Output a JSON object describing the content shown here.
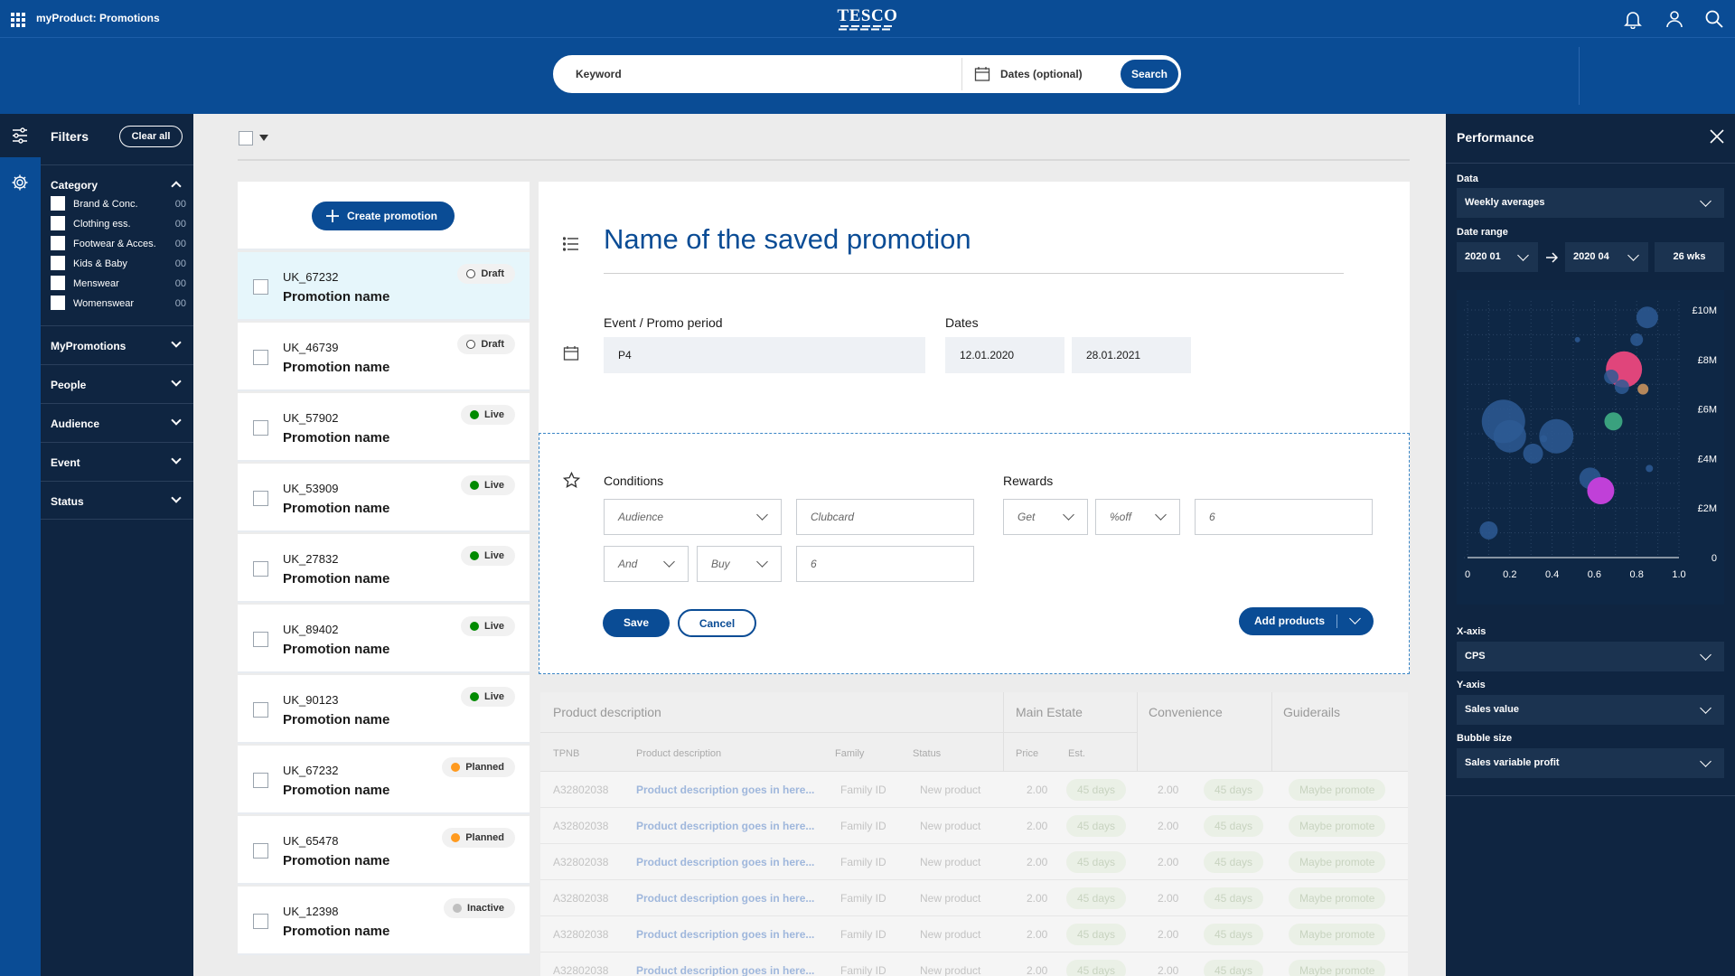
{
  "header": {
    "app_title": "myProduct: Promotions",
    "brand": "TESCO"
  },
  "search": {
    "keyword_placeholder": "Keyword",
    "dates_placeholder": "Dates (optional)",
    "button": "Search"
  },
  "filters": {
    "title": "Filters",
    "clear_all": "Clear all",
    "category_title": "Category",
    "categories": [
      {
        "label": "Brand & Conc.",
        "count": "00"
      },
      {
        "label": "Clothing ess.",
        "count": "00"
      },
      {
        "label": "Footwear & Acces.",
        "count": "00"
      },
      {
        "label": "Kids & Baby",
        "count": "00"
      },
      {
        "label": "Menswear",
        "count": "00"
      },
      {
        "label": "Womenswear",
        "count": "00"
      }
    ],
    "sections": [
      "MyPromotions",
      "People",
      "Audience",
      "Event",
      "Status"
    ]
  },
  "list": {
    "create_button": "Create promotion",
    "items": [
      {
        "id": "UK_67232",
        "name": "Promotion name",
        "status": "Draft",
        "status_color": "#ffffff"
      },
      {
        "id": "UK_46739",
        "name": "Promotion name",
        "status": "Draft",
        "status_color": "#ffffff"
      },
      {
        "id": "UK_57902",
        "name": "Promotion name",
        "status": "Live",
        "status_color": "#008a00"
      },
      {
        "id": "UK_53909",
        "name": "Promotion name",
        "status": "Live",
        "status_color": "#008a00"
      },
      {
        "id": "UK_27832",
        "name": "Promotion name",
        "status": "Live",
        "status_color": "#008a00"
      },
      {
        "id": "UK_89402",
        "name": "Promotion name",
        "status": "Live",
        "status_color": "#008a00"
      },
      {
        "id": "UK_90123",
        "name": "Promotion name",
        "status": "Live",
        "status_color": "#008a00"
      },
      {
        "id": "UK_67232",
        "name": "Promotion name",
        "status": "Planned",
        "status_color": "#ff9a1f"
      },
      {
        "id": "UK_65478",
        "name": "Promotion name",
        "status": "Planned",
        "status_color": "#ff9a1f"
      },
      {
        "id": "UK_12398",
        "name": "Promotion name",
        "status": "Inactive",
        "status_color": "#bfbfbf"
      }
    ]
  },
  "promotion": {
    "title": "Name of the saved promotion",
    "event_label": "Event / Promo period",
    "event_value": "P4",
    "dates_label": "Dates",
    "date_from": "12.01.2020",
    "date_to": "28.01.2021",
    "conditions_label": "Conditions",
    "rewards_label": "Rewards",
    "audience": "Audience",
    "clubcard": "Clubcard",
    "and": "And",
    "buy": "Buy",
    "buy_qty": "6",
    "get": "Get",
    "off": "%off",
    "reward_qty": "6",
    "save": "Save",
    "cancel": "Cancel",
    "add_products": "Add products"
  },
  "table": {
    "groups": [
      "Product description",
      "Main Estate",
      "Convenience",
      "Guiderails"
    ],
    "columns": [
      "TPNB",
      "Product description",
      "Family",
      "Status",
      "Price",
      "Est."
    ],
    "rows": [
      {
        "tpnb": "A32802038",
        "desc": "Product description goes in here...",
        "family": "Family ID",
        "status": "New product",
        "price": "2.00",
        "est": "45 days",
        "conv_price": "2.00",
        "conv_est": "45 days",
        "guide": "Maybe promote"
      },
      {
        "tpnb": "A32802038",
        "desc": "Product description goes in here...",
        "family": "Family ID",
        "status": "New product",
        "price": "2.00",
        "est": "45 days",
        "conv_price": "2.00",
        "conv_est": "45 days",
        "guide": "Maybe promote"
      },
      {
        "tpnb": "A32802038",
        "desc": "Product description goes in here...",
        "family": "Family ID",
        "status": "New product",
        "price": "2.00",
        "est": "45 days",
        "conv_price": "2.00",
        "conv_est": "45 days",
        "guide": "Maybe promote"
      },
      {
        "tpnb": "A32802038",
        "desc": "Product description goes in here...",
        "family": "Family ID",
        "status": "New product",
        "price": "2.00",
        "est": "45 days",
        "conv_price": "2.00",
        "conv_est": "45 days",
        "guide": "Maybe promote"
      },
      {
        "tpnb": "A32802038",
        "desc": "Product description goes in here...",
        "family": "Family ID",
        "status": "New product",
        "price": "2.00",
        "est": "45 days",
        "conv_price": "2.00",
        "conv_est": "45 days",
        "guide": "Maybe promote"
      },
      {
        "tpnb": "A32802038",
        "desc": "Product description goes in here...",
        "family": "Family ID",
        "status": "New product",
        "price": "2.00",
        "est": "45 days",
        "conv_price": "2.00",
        "conv_est": "45 days",
        "guide": "Maybe promote"
      }
    ]
  },
  "performance": {
    "title": "Performance",
    "data_label": "Data",
    "data_value": "Weekly averages",
    "date_range_label": "Date range",
    "range_from": "2020 01",
    "range_to": "2020 04",
    "weeks": "26 wks",
    "xaxis_label": "X-axis",
    "xaxis_value": "CPS",
    "yaxis_label": "Y-axis",
    "yaxis_value": "Sales value",
    "bubble_label": "Bubble size",
    "bubble_value": "Sales variable profit"
  },
  "chart_data": {
    "type": "scatter",
    "x_ticks": [
      "0",
      "0.2",
      "0.4",
      "0.6",
      "0.8",
      "1.0"
    ],
    "y_ticks": [
      "0",
      "£2M",
      "£4M",
      "£6M",
      "£8M",
      "£10M"
    ],
    "xlim": [
      0,
      1.0
    ],
    "ylim": [
      0,
      10
    ],
    "grid": true,
    "points": [
      {
        "x": 0.85,
        "y": 9.7,
        "size": 12,
        "color": "#2d5a94"
      },
      {
        "x": 0.52,
        "y": 8.8,
        "size": 3,
        "color": "#2d5a94"
      },
      {
        "x": 0.8,
        "y": 8.8,
        "size": 7,
        "color": "#2d5a94"
      },
      {
        "x": 0.74,
        "y": 7.6,
        "size": 20,
        "color": "#e0457b"
      },
      {
        "x": 0.68,
        "y": 7.3,
        "size": 8,
        "color": "#2d5a94"
      },
      {
        "x": 0.73,
        "y": 6.9,
        "size": 8,
        "color": "#2d5a94"
      },
      {
        "x": 0.83,
        "y": 6.8,
        "size": 6,
        "color": "#b5875b"
      },
      {
        "x": 0.17,
        "y": 5.5,
        "size": 24,
        "color": "#2d5a94"
      },
      {
        "x": 0.2,
        "y": 4.9,
        "size": 18,
        "color": "#2d5a94"
      },
      {
        "x": 0.69,
        "y": 5.5,
        "size": 10,
        "color": "#3aa17e"
      },
      {
        "x": 0.42,
        "y": 4.9,
        "size": 19,
        "color": "#2d5a94"
      },
      {
        "x": 0.31,
        "y": 4.2,
        "size": 11,
        "color": "#2d5a94"
      },
      {
        "x": 0.36,
        "y": 4.8,
        "size": 4,
        "color": "#2d5a94"
      },
      {
        "x": 0.58,
        "y": 3.2,
        "size": 12,
        "color": "#2d5a94"
      },
      {
        "x": 0.86,
        "y": 3.6,
        "size": 4,
        "color": "#2d5a94"
      },
      {
        "x": 0.63,
        "y": 2.7,
        "size": 15,
        "color": "#c040d8"
      },
      {
        "x": 0.1,
        "y": 1.1,
        "size": 10,
        "color": "#2d5a94"
      }
    ]
  }
}
